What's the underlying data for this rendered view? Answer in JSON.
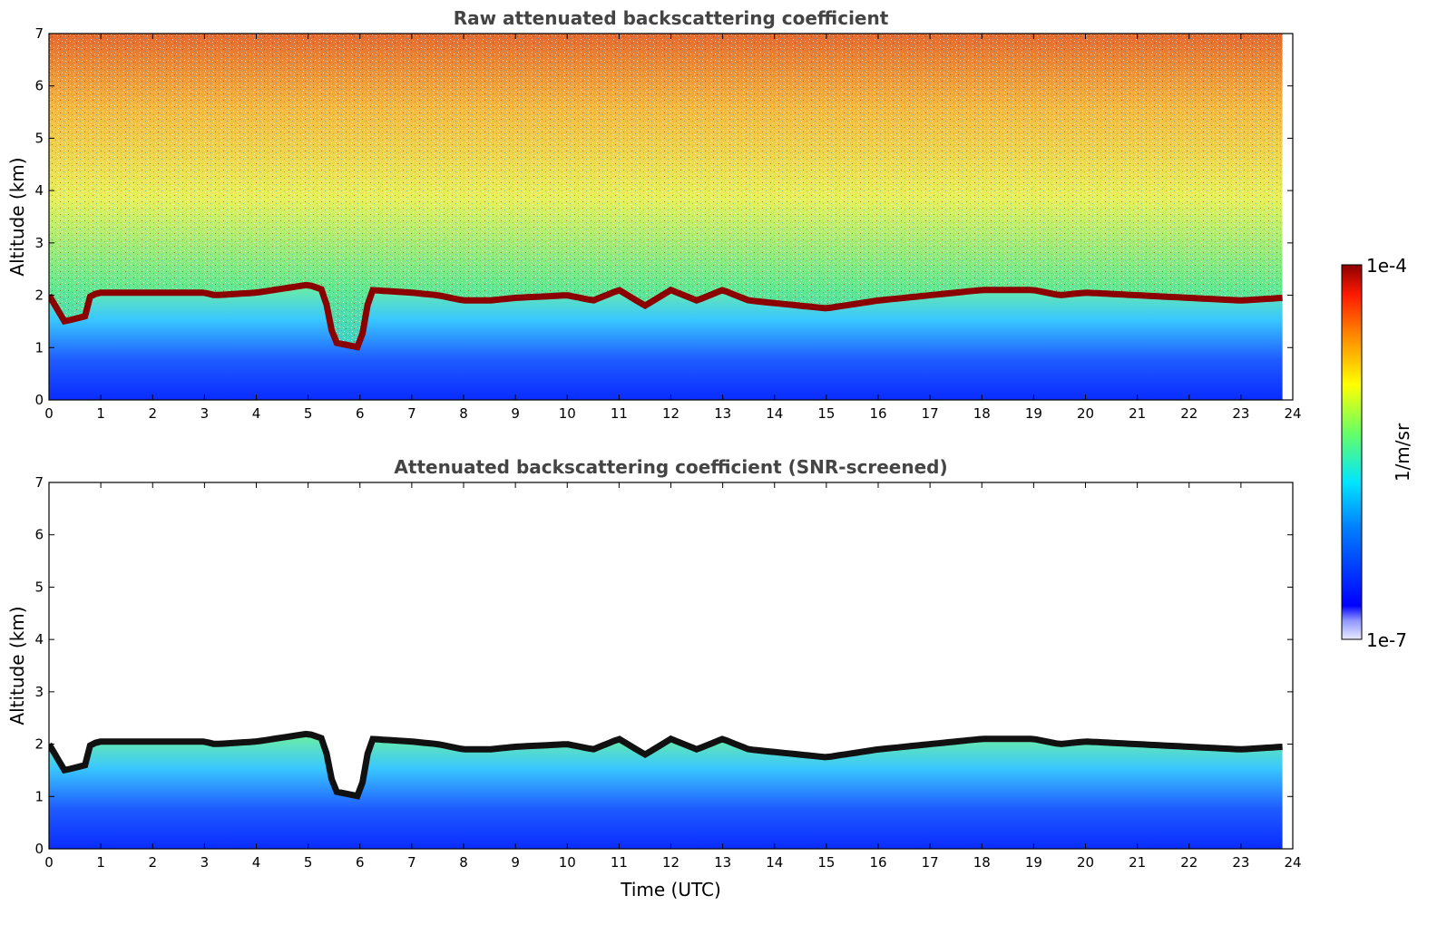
{
  "chart_data": [
    {
      "type": "heatmap",
      "title": "Raw attenuated backscattering coefficient",
      "xlabel": "",
      "ylabel": "Altitude (km)",
      "xlim": [
        0,
        24
      ],
      "ylim": [
        0,
        7
      ],
      "x_ticks": [
        0,
        1,
        2,
        3,
        4,
        5,
        6,
        7,
        8,
        9,
        10,
        11,
        12,
        13,
        14,
        15,
        16,
        17,
        18,
        19,
        20,
        21,
        22,
        23,
        24
      ],
      "y_ticks": [
        0,
        1,
        2,
        3,
        4,
        5,
        6,
        7
      ],
      "data_end_time": 23.8,
      "boundary_layer_top_km": [
        [
          0,
          2.0
        ],
        [
          0.3,
          1.5
        ],
        [
          0.7,
          1.6
        ],
        [
          0.8,
          2.0
        ],
        [
          1,
          2.05
        ],
        [
          3,
          2.05
        ],
        [
          3.2,
          2.0
        ],
        [
          4,
          2.05
        ],
        [
          5,
          2.2
        ],
        [
          5.3,
          2.1
        ],
        [
          5.5,
          1.1
        ],
        [
          6,
          1.0
        ],
        [
          6.2,
          2.1
        ],
        [
          7,
          2.05
        ],
        [
          7.5,
          2.0
        ],
        [
          8,
          1.9
        ],
        [
          8.5,
          1.9
        ],
        [
          9,
          1.95
        ],
        [
          10,
          2.0
        ],
        [
          10.5,
          1.9
        ],
        [
          11,
          2.1
        ],
        [
          11.5,
          1.8
        ],
        [
          12,
          2.1
        ],
        [
          12.5,
          1.9
        ],
        [
          13,
          2.1
        ],
        [
          13.5,
          1.9
        ],
        [
          14,
          1.85
        ],
        [
          15,
          1.75
        ],
        [
          16,
          1.9
        ],
        [
          17,
          2.0
        ],
        [
          17.5,
          2.05
        ],
        [
          18,
          2.1
        ],
        [
          19,
          2.1
        ],
        [
          19.5,
          2.0
        ],
        [
          20,
          2.05
        ],
        [
          21,
          2.0
        ],
        [
          22,
          1.95
        ],
        [
          23,
          1.9
        ],
        [
          23.8,
          1.95
        ]
      ]
    },
    {
      "type": "heatmap",
      "title": "Attenuated backscattering coefficient (SNR-screened)",
      "xlabel": "Time (UTC)",
      "ylabel": "Altitude (km)",
      "xlim": [
        0,
        24
      ],
      "ylim": [
        0,
        7
      ],
      "x_ticks": [
        0,
        1,
        2,
        3,
        4,
        5,
        6,
        7,
        8,
        9,
        10,
        11,
        12,
        13,
        14,
        15,
        16,
        17,
        18,
        19,
        20,
        21,
        22,
        23,
        24
      ],
      "y_ticks": [
        0,
        1,
        2,
        3,
        4,
        5,
        6,
        7
      ],
      "data_end_time": 23.8,
      "screened_above_boundary_layer": true
    }
  ],
  "colorbar": {
    "label": "1/m/sr",
    "max_label": "1e-4",
    "min_label": "1e-7",
    "scale": "log",
    "colormap": [
      "#e8eaff",
      "#0000ff",
      "#00aaff",
      "#00ffcc",
      "#88ff44",
      "#ffff00",
      "#ff8800",
      "#ff2200",
      "#990000"
    ]
  }
}
